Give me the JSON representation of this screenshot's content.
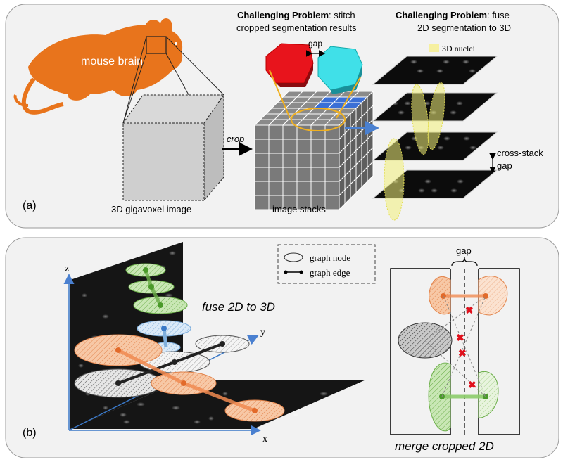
{
  "panel_a": {
    "label": "(a)",
    "mouse_label": "mouse brain",
    "cube_label": "3D gigavoxel image",
    "crop_label": "crop",
    "stacks_label": "image stacks",
    "problem1_bold": "Challenging Problem",
    "problem1_rest": ": stitch",
    "problem1_line2": "cropped segmentation results",
    "gap_label": "gap",
    "problem2_bold": "Challenging Problem",
    "problem2_rest": ": fuse",
    "problem2_line2": "2D segmentation to 3D",
    "nuclei_legend": "3D nuclei",
    "cross_stack_line1": "cross-stack",
    "cross_stack_line2": "gap"
  },
  "panel_b": {
    "label": "(b)",
    "axis_z": "z",
    "axis_y": "y",
    "axis_x": "x",
    "fuse_label": "fuse 2D to 3D",
    "legend_node": "graph node",
    "legend_edge": "graph edge",
    "gap_label": "gap",
    "merge_label": "merge cropped 2D"
  },
  "colors": {
    "mouse": "#e8741c",
    "panel_bg": "#f2f2f2",
    "red_block": "#e8141c",
    "cyan_block": "#40e0e8",
    "blue_cube": "#3a6fd6",
    "yellow": "#f2f07a",
    "orange": "#f2a06a",
    "green": "#8ccc6a",
    "blue_node": "#a8cdef",
    "x_mark": "#e0101c"
  }
}
